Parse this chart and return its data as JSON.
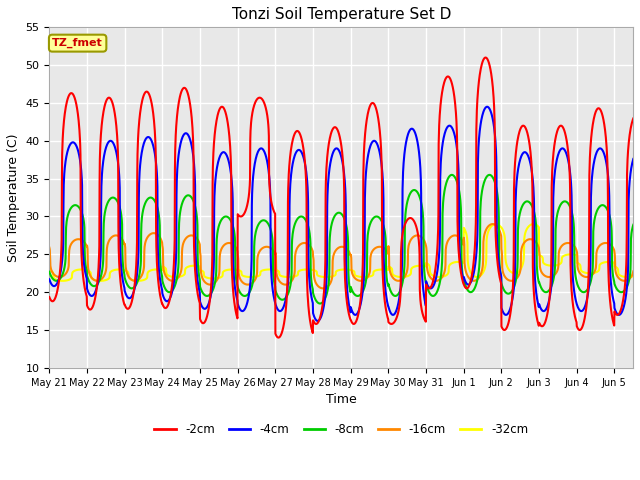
{
  "title": "Tonzi Soil Temperature Set D",
  "xlabel": "Time",
  "ylabel": "Soil Temperature (C)",
  "ylim": [
    10,
    55
  ],
  "series_colors": {
    "-2cm": "#FF0000",
    "-4cm": "#0000FF",
    "-8cm": "#00CC00",
    "-16cm": "#FF8800",
    "-32cm": "#FFFF00"
  },
  "legend_colors": [
    "#FF0000",
    "#0000FF",
    "#00CC00",
    "#FF8800",
    "#FFFF00"
  ],
  "legend_labels": [
    "-2cm",
    "-4cm",
    "-8cm",
    "-16cm",
    "-32cm"
  ],
  "annotation_text": "TZ_fmet",
  "annotation_color": "#CC0000",
  "annotation_bg": "#FFFF99",
  "annotation_border": "#999900",
  "background_color": "#E8E8E8",
  "grid_color": "#FFFFFF",
  "tick_labels": [
    "May 21",
    "May 22",
    "May 23",
    "May 24",
    "May 25",
    "May 26",
    "May 27",
    "May 28",
    "May 29",
    "May 30",
    "May 31",
    "Jun 1",
    "Jun 2",
    "Jun 3",
    "Jun 4",
    "Jun 5"
  ],
  "yticks": [
    10,
    15,
    20,
    25,
    30,
    35,
    40,
    45,
    50,
    55
  ],
  "figsize": [
    6.4,
    4.8
  ],
  "dpi": 100,
  "peaks_2cm": [
    46.3,
    45.7,
    46.5,
    47.0,
    44.5,
    45.7,
    41.3,
    41.8,
    45.0,
    29.8,
    48.5,
    51.0,
    42.0,
    42.0,
    44.3,
    43.4
  ],
  "troughs_2cm": [
    18.8,
    17.7,
    17.8,
    17.9,
    15.9,
    30.0,
    14.0,
    15.8,
    15.8,
    15.8,
    20.5,
    20.5,
    15.0,
    15.5,
    15.0,
    17.0
  ],
  "peaks_4cm": [
    39.8,
    40.0,
    40.5,
    41.0,
    38.5,
    39.0,
    38.8,
    39.0,
    40.0,
    41.6,
    42.0,
    44.5,
    38.5,
    39.0,
    39.0,
    38.5
  ],
  "troughs_4cm": [
    20.8,
    19.5,
    19.2,
    18.8,
    17.8,
    17.5,
    17.5,
    16.2,
    17.0,
    17.0,
    20.5,
    21.0,
    17.0,
    17.5,
    17.5,
    17.0
  ],
  "peaks_8cm": [
    31.5,
    32.5,
    32.5,
    32.8,
    30.0,
    29.5,
    30.0,
    30.5,
    30.0,
    33.5,
    35.5,
    35.5,
    32.0,
    32.0,
    31.5,
    30.0
  ],
  "troughs_8cm": [
    21.5,
    20.8,
    20.5,
    20.0,
    19.5,
    19.5,
    19.0,
    18.5,
    19.5,
    19.5,
    19.5,
    20.0,
    19.8,
    20.0,
    20.0,
    20.0
  ],
  "peaks_16cm": [
    27.0,
    27.5,
    27.8,
    27.5,
    26.5,
    26.0,
    26.5,
    26.0,
    26.0,
    27.5,
    27.5,
    29.0,
    27.0,
    26.5,
    26.5,
    26.5
  ],
  "troughs_16cm": [
    22.0,
    21.5,
    21.5,
    21.5,
    21.0,
    21.0,
    21.0,
    20.5,
    21.5,
    21.5,
    21.5,
    21.5,
    21.5,
    22.0,
    22.0,
    21.5
  ],
  "peaks_32cm": [
    23.0,
    23.0,
    23.0,
    23.5,
    23.0,
    23.0,
    23.0,
    23.0,
    23.0,
    23.5,
    24.0,
    29.0,
    29.0,
    25.0,
    24.0,
    23.5
  ],
  "troughs_32cm": [
    21.5,
    21.5,
    21.5,
    22.0,
    21.8,
    22.0,
    22.0,
    22.0,
    22.0,
    22.0,
    22.0,
    22.0,
    22.5,
    23.5,
    22.5,
    22.0
  ],
  "phase_shifts_hours": [
    0,
    1.0,
    2.5,
    4.5,
    6.5
  ],
  "peak_hour": 14.0,
  "sharpness": 3.5
}
